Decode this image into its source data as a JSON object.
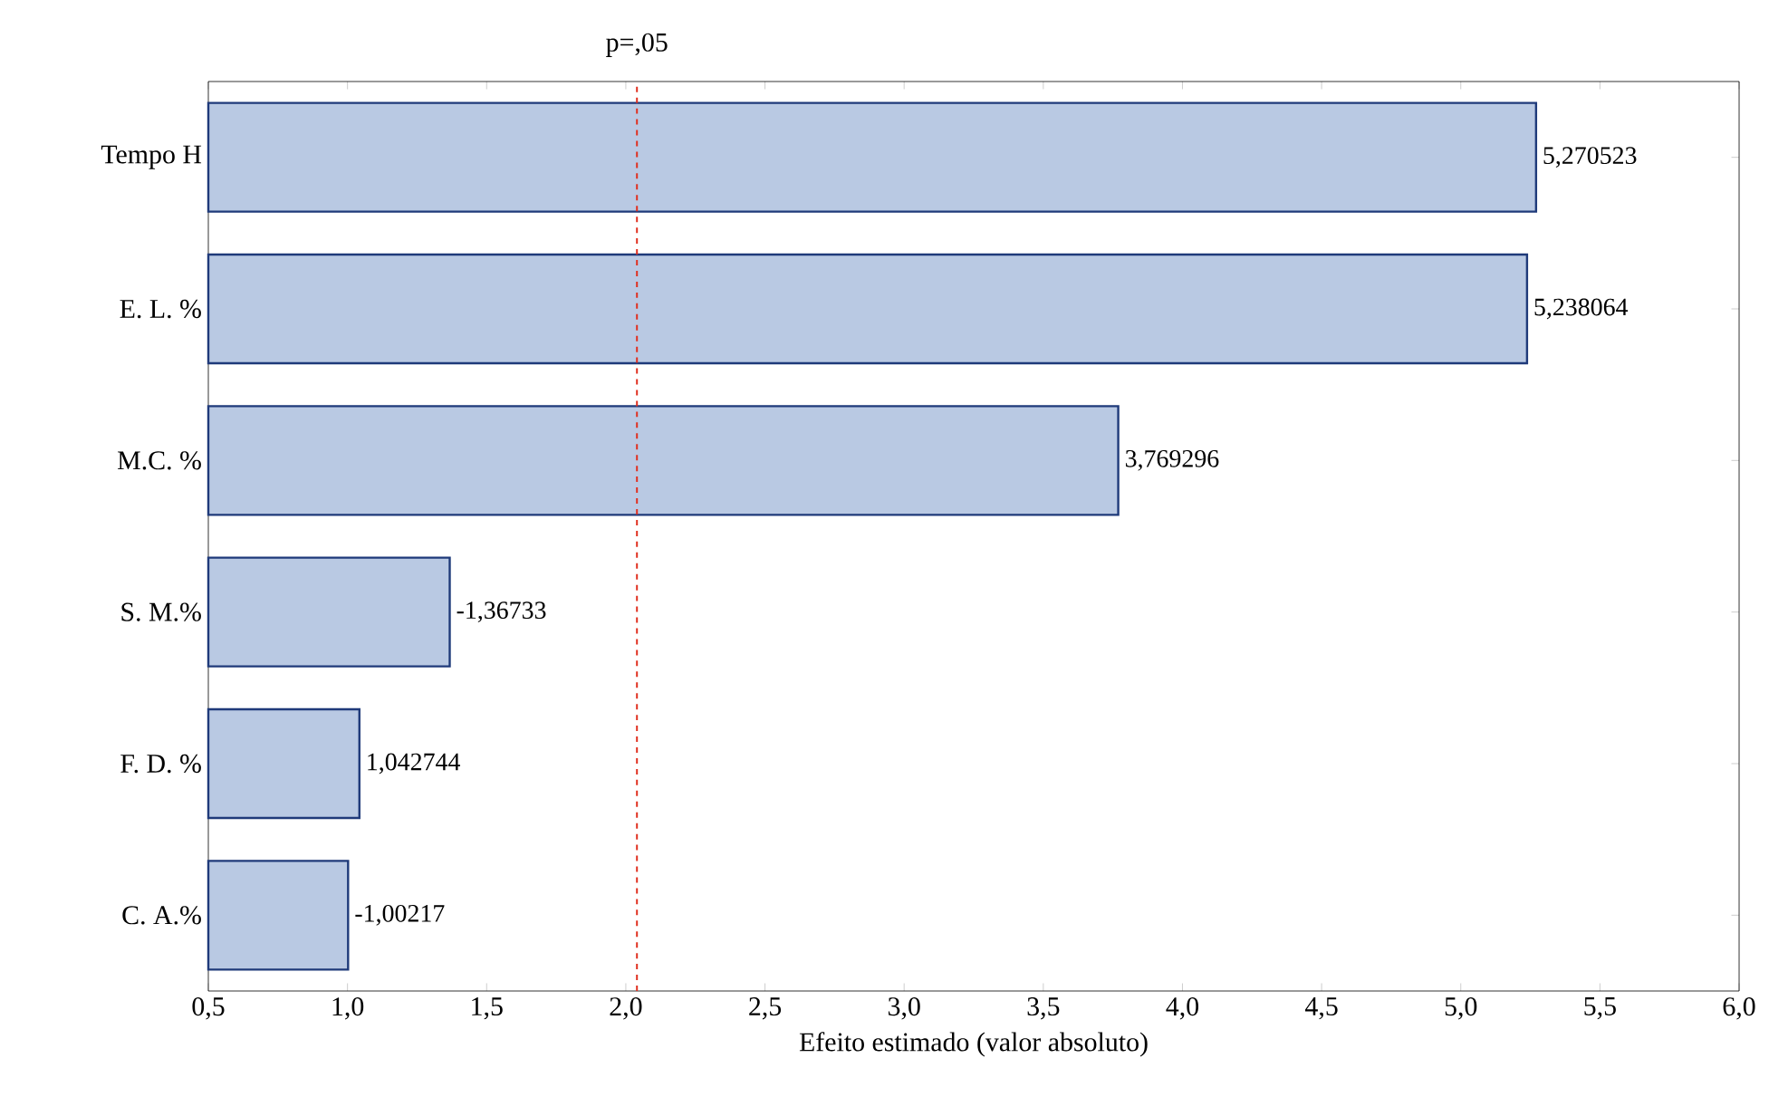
{
  "chart_data": {
    "type": "bar",
    "orientation": "horizontal",
    "xlabel": "Efeito estimado (valor absoluto)",
    "categories": [
      "Tempo H",
      "E. L. %",
      "M.C. %",
      "S. M.%",
      "F. D. %",
      "C. A.%"
    ],
    "values": [
      5.270523,
      5.238064,
      3.769296,
      1.36733,
      1.042744,
      1.00217
    ],
    "value_labels": [
      "5,270523",
      "5,238064",
      "3,769296",
      "-1,36733",
      "1,042744",
      "-1,00217"
    ],
    "color": "#b9c9e3",
    "xlim": [
      0.5,
      6.0
    ],
    "xticks": [
      {
        "value": 0.5,
        "label": "0,5"
      },
      {
        "value": 1.0,
        "label": "1,0"
      },
      {
        "value": 1.5,
        "label": "1,5"
      },
      {
        "value": 2.0,
        "label": "2,0"
      },
      {
        "value": 2.5,
        "label": "2,5"
      },
      {
        "value": 3.0,
        "label": "3,0"
      },
      {
        "value": 3.5,
        "label": "3,5"
      },
      {
        "value": 4.0,
        "label": "4,0"
      },
      {
        "value": 4.5,
        "label": "4,5"
      },
      {
        "value": 5.0,
        "label": "5,0"
      },
      {
        "value": 5.5,
        "label": "5,5"
      },
      {
        "value": 6.0,
        "label": "6,0"
      }
    ],
    "ref_lines": [
      {
        "axis": "x",
        "value": 2.04,
        "label": "p=,05",
        "color": "#e03020",
        "line_style": "dashed"
      }
    ],
    "grid": false
  }
}
